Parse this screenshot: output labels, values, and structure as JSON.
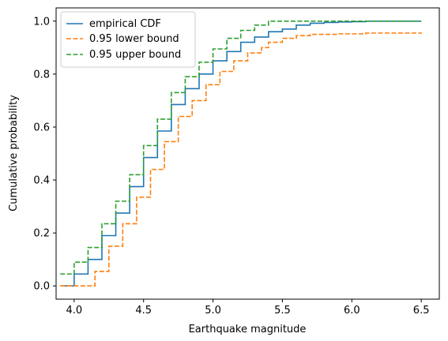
{
  "chart_data": {
    "type": "line",
    "title": "",
    "xlabel": "Earthquake magnitude",
    "ylabel": "Cumulative probability",
    "xlim": [
      3.87,
      6.63
    ],
    "ylim": [
      -0.05,
      1.05
    ],
    "xticks": [
      4.0,
      4.5,
      5.0,
      5.5,
      6.0,
      6.5
    ],
    "xtick_labels": [
      "4.0",
      "4.5",
      "5.0",
      "5.5",
      "6.0",
      "6.5"
    ],
    "yticks": [
      0.0,
      0.2,
      0.4,
      0.6,
      0.8,
      1.0
    ],
    "ytick_labels": [
      "0.0",
      "0.2",
      "0.4",
      "0.6",
      "0.8",
      "1.0"
    ],
    "grid": false,
    "legend_position": "top-left",
    "series": [
      {
        "name": "empirical CDF",
        "style": "solid",
        "color": "#1f77b4",
        "x": [
          3.9,
          4.0,
          4.1,
          4.2,
          4.3,
          4.4,
          4.5,
          4.6,
          4.7,
          4.8,
          4.9,
          5.0,
          5.1,
          5.2,
          5.3,
          5.4,
          5.5,
          5.6,
          5.7,
          5.8,
          5.9,
          6.0,
          6.1,
          6.5
        ],
        "y": [
          0.0,
          0.045,
          0.1,
          0.19,
          0.275,
          0.375,
          0.485,
          0.585,
          0.685,
          0.745,
          0.8,
          0.85,
          0.885,
          0.92,
          0.94,
          0.96,
          0.97,
          0.985,
          0.992,
          0.995,
          0.997,
          0.998,
          1.0,
          1.0
        ]
      },
      {
        "name": "0.95 lower bound",
        "style": "dashed",
        "color": "#ff7f0e",
        "x": [
          3.9,
          4.0,
          4.05,
          4.1,
          4.15,
          4.2,
          4.25,
          4.3,
          4.35,
          4.4,
          4.45,
          4.5,
          4.55,
          4.6,
          4.65,
          4.7,
          4.75,
          4.8,
          4.85,
          4.9,
          4.95,
          5.0,
          5.05,
          5.1,
          5.15,
          5.2,
          5.25,
          5.3,
          5.35,
          5.4,
          5.5,
          5.6,
          5.7,
          5.9,
          6.1,
          6.5
        ],
        "y": [
          0.0,
          0.0,
          0.0,
          0.0,
          0.055,
          0.055,
          0.15,
          0.15,
          0.235,
          0.235,
          0.335,
          0.335,
          0.44,
          0.44,
          0.545,
          0.545,
          0.64,
          0.64,
          0.7,
          0.7,
          0.76,
          0.76,
          0.81,
          0.81,
          0.85,
          0.85,
          0.88,
          0.88,
          0.9,
          0.92,
          0.935,
          0.945,
          0.95,
          0.952,
          0.955,
          0.957
        ]
      },
      {
        "name": "0.95 upper bound",
        "style": "dashed",
        "color": "#2ca02c",
        "x": [
          3.9,
          3.95,
          4.0,
          4.05,
          4.1,
          4.15,
          4.2,
          4.25,
          4.3,
          4.35,
          4.4,
          4.45,
          4.5,
          4.55,
          4.6,
          4.65,
          4.7,
          4.75,
          4.8,
          4.85,
          4.9,
          4.95,
          5.0,
          5.05,
          5.1,
          5.15,
          5.2,
          5.25,
          5.3,
          5.35,
          5.4,
          6.5
        ],
        "y": [
          0.045,
          0.045,
          0.09,
          0.09,
          0.145,
          0.145,
          0.235,
          0.235,
          0.32,
          0.32,
          0.42,
          0.42,
          0.53,
          0.53,
          0.63,
          0.63,
          0.73,
          0.73,
          0.79,
          0.79,
          0.845,
          0.845,
          0.895,
          0.895,
          0.935,
          0.935,
          0.965,
          0.965,
          0.985,
          0.985,
          1.0,
          1.0
        ]
      }
    ]
  }
}
